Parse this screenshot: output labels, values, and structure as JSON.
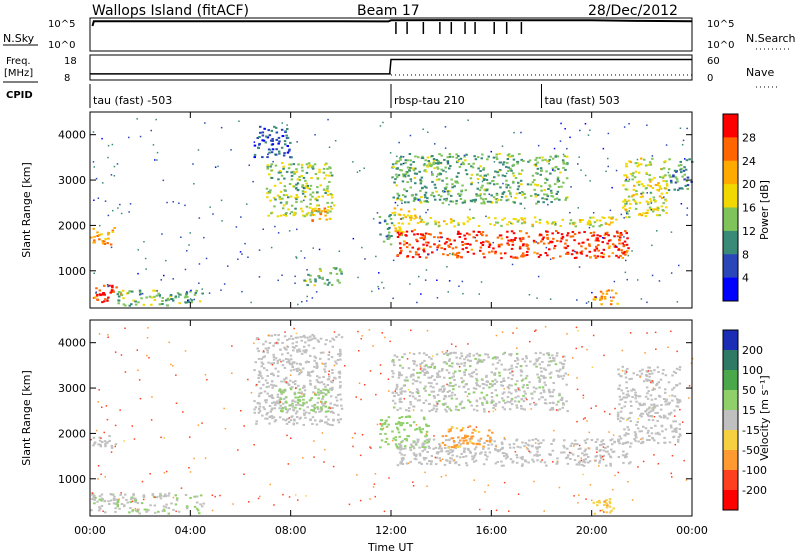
{
  "header": {
    "site": "Wallops Island (fitACF)",
    "beam": "Beam 17",
    "date": "28/Dec/2012"
  },
  "panels": {
    "nsky_label": "N.Sky",
    "nsearch_label": "N.Search",
    "freq_label_1": "Freq.",
    "freq_label_2": "[MHz]",
    "nave_label": "Nave",
    "cpid_label": "CPID",
    "nsky_ticks": [
      "10^5",
      "10^0"
    ],
    "nsearch_ticks": [
      "10^5",
      "10^0"
    ],
    "freq_ticks": [
      "18",
      "8"
    ],
    "nave_ticks": [
      "60",
      "0"
    ],
    "cpid_segments": [
      {
        "label": "tau (fast) -503",
        "start_hour": 0
      },
      {
        "label": "rbsp-tau 210",
        "start_hour": 12
      },
      {
        "label": "tau (fast) 503",
        "start_hour": 18
      }
    ]
  },
  "axes": {
    "ylabel": "Slant Range [km]",
    "xlabel": "Time UT",
    "x_ticks": [
      "00:00",
      "04:00",
      "08:00",
      "12:00",
      "16:00",
      "20:00",
      "00:00"
    ],
    "y_ticks": [
      "1000",
      "2000",
      "3000",
      "4000"
    ]
  },
  "power_colorbar": {
    "label": "Power [dB]",
    "ticks": [
      "28",
      "24",
      "20",
      "16",
      "12",
      "8",
      "4"
    ],
    "colors": [
      "#ff0000",
      "#ff6600",
      "#ffaa00",
      "#f0d800",
      "#7fc45a",
      "#3a8a78",
      "#2a46b8",
      "#0000ff"
    ]
  },
  "velocity_colorbar": {
    "label": "Velocity [m s⁻¹]",
    "ticks": [
      "200",
      "100",
      "50",
      "15",
      "-15",
      "-50",
      "-100",
      "-200"
    ],
    "colors": [
      "#1a2db4",
      "#2e7a64",
      "#4aa84a",
      "#8fd06a",
      "#c0c0c0",
      "#f6d040",
      "#ff9a30",
      "#ff4020",
      "#ff0000"
    ]
  },
  "chart_data": [
    {
      "type": "line",
      "title": "N.Sky / N.Search",
      "x_range_hours": [
        0,
        24
      ],
      "series": [
        {
          "name": "N.Sky",
          "values": [
            [
              0.1,
              10000
            ],
            [
              0.15,
              60000
            ],
            [
              2,
              60000
            ],
            [
              6,
              62000
            ],
            [
              10,
              60000
            ],
            [
              11.9,
              58000
            ],
            [
              12,
              90000
            ],
            [
              14,
              95000
            ],
            [
              17,
              92000
            ],
            [
              20,
              90000
            ],
            [
              22,
              70000
            ],
            [
              24,
              60000
            ]
          ]
        }
      ]
    },
    {
      "type": "line",
      "title": "Freq. / Nave",
      "x_range_hours": [
        0,
        24
      ],
      "ylim": [
        8,
        18
      ],
      "series": [
        {
          "name": "Freq.",
          "values": [
            [
              0,
              10.2
            ],
            [
              11.95,
              10.2
            ],
            [
              12.0,
              16.5
            ],
            [
              24,
              16.5
            ]
          ]
        }
      ]
    },
    {
      "type": "heatmap",
      "title": "Power [dB]",
      "xlabel": "Time UT",
      "ylabel": "Slant Range [km]",
      "xlim_hours": [
        0,
        24
      ],
      "ylim_km": [
        180,
        4500
      ],
      "clim": [
        0,
        30
      ],
      "regions": [
        {
          "t": [
            0.0,
            1.2
          ],
          "r": [
            300,
            700
          ],
          "v": 26
        },
        {
          "t": [
            0.0,
            1.0
          ],
          "r": [
            1600,
            2000
          ],
          "v": 22
        },
        {
          "t": [
            1.0,
            4.5
          ],
          "r": [
            250,
            600
          ],
          "v": 12
        },
        {
          "t": [
            6.5,
            8.0
          ],
          "r": [
            3500,
            4200
          ],
          "v": 6
        },
        {
          "t": [
            7.0,
            9.7
          ],
          "r": [
            2200,
            3400
          ],
          "v": 14
        },
        {
          "t": [
            8.8,
            9.6
          ],
          "r": [
            2100,
            2400
          ],
          "v": 22
        },
        {
          "t": [
            8.5,
            10.0
          ],
          "r": [
            700,
            1100
          ],
          "v": 12
        },
        {
          "t": [
            11.5,
            12.0
          ],
          "r": [
            1600,
            2300
          ],
          "v": 10
        },
        {
          "t": [
            12.0,
            13.0
          ],
          "r": [
            1800,
            2400
          ],
          "v": 18
        },
        {
          "t": [
            12.2,
            21.5
          ],
          "r": [
            1300,
            1900
          ],
          "v": 26
        },
        {
          "t": [
            13.0,
            21.0
          ],
          "r": [
            2000,
            2200
          ],
          "v": 16
        },
        {
          "t": [
            12.0,
            19.0
          ],
          "r": [
            2500,
            3600
          ],
          "v": 12
        },
        {
          "t": [
            20.0,
            21.0
          ],
          "r": [
            250,
            600
          ],
          "v": 22
        },
        {
          "t": [
            21.2,
            23.0
          ],
          "r": [
            2200,
            3500
          ],
          "v": 16
        },
        {
          "t": [
            23.0,
            24.0
          ],
          "r": [
            2800,
            3500
          ],
          "v": 10
        }
      ]
    },
    {
      "type": "heatmap",
      "title": "Velocity [m s⁻¹]",
      "xlabel": "Time UT",
      "ylabel": "Slant Range [km]",
      "xlim_hours": [
        0,
        24
      ],
      "ylim_km": [
        180,
        4500
      ],
      "clim": [
        -200,
        200
      ],
      "regions": [
        {
          "t": [
            0.0,
            1.0
          ],
          "r": [
            1700,
            2000
          ],
          "v": 0
        },
        {
          "t": [
            0.0,
            4.5
          ],
          "r": [
            250,
            700
          ],
          "v": 10
        },
        {
          "t": [
            6.5,
            10.0
          ],
          "r": [
            2200,
            4200
          ],
          "v": 0
        },
        {
          "t": [
            7.5,
            9.5
          ],
          "r": [
            2500,
            3000
          ],
          "v": 30
        },
        {
          "t": [
            11.5,
            13.5
          ],
          "r": [
            1700,
            2400
          ],
          "v": 30
        },
        {
          "t": [
            12.2,
            21.5
          ],
          "r": [
            1300,
            1900
          ],
          "v": 0
        },
        {
          "t": [
            14.0,
            16.0
          ],
          "r": [
            1700,
            2200
          ],
          "v": -60
        },
        {
          "t": [
            12.0,
            19.0
          ],
          "r": [
            2500,
            3800
          ],
          "v": 5
        },
        {
          "t": [
            21.0,
            23.5
          ],
          "r": [
            1800,
            3500
          ],
          "v": 0
        },
        {
          "t": [
            20.0,
            21.0
          ],
          "r": [
            250,
            600
          ],
          "v": -40
        }
      ]
    }
  ]
}
